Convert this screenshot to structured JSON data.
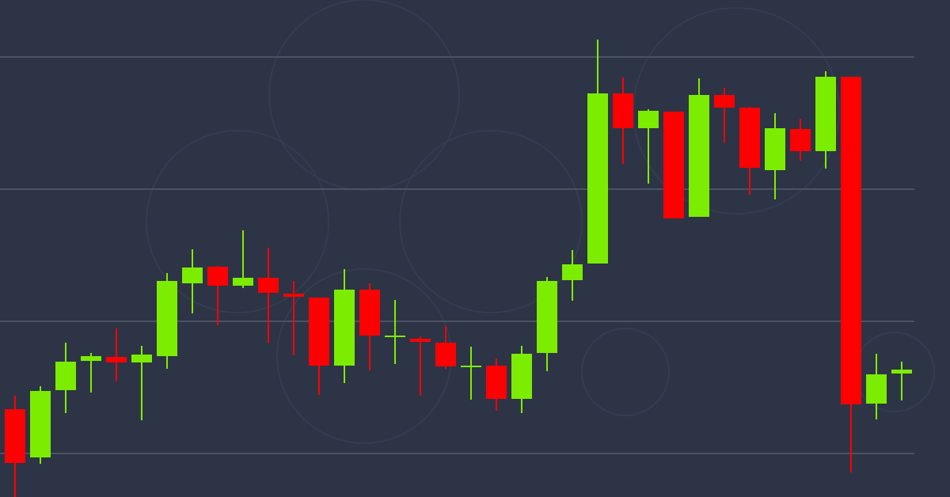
{
  "chart_data": {
    "type": "candlestick",
    "ylim": [
      0,
      628
    ],
    "yticks": [
      55,
      222,
      389,
      556
    ],
    "grid": true,
    "up_color": "#7ced00",
    "down_color": "#ff0000",
    "open": [
      111,
      50,
      135,
      172,
      177,
      170,
      178,
      270,
      291,
      267,
      277,
      257,
      252,
      166,
      262,
      203,
      200,
      195,
      164,
      166,
      124,
      182,
      274,
      295,
      510,
      466,
      487,
      354,
      508,
      492,
      413,
      465,
      437,
      531,
      118,
      156
    ],
    "high": [
      128,
      140,
      195,
      182,
      213,
      191,
      283,
      313,
      292,
      337,
      315,
      273,
      252,
      288,
      270,
      249,
      203,
      216,
      190,
      175,
      191,
      278,
      312,
      578,
      530,
      490,
      487,
      529,
      517,
      493,
      485,
      478,
      538,
      531,
      181,
      171
    ],
    "low": [
      0,
      42,
      106,
      132,
      146,
      97,
      162,
      232,
      217,
      264,
      195,
      179,
      129,
      144,
      160,
      168,
      128,
      162,
      123,
      109,
      106,
      159,
      248,
      295,
      421,
      396,
      352,
      354,
      448,
      382,
      376,
      425,
      415,
      31,
      98,
      122
    ],
    "close": [
      43,
      134,
      171,
      178,
      170,
      180,
      273,
      290,
      267,
      277,
      258,
      253,
      166,
      262,
      204,
      204,
      196,
      165,
      166,
      124,
      181,
      273,
      294,
      510,
      466,
      488,
      352,
      508,
      492,
      416,
      466,
      437,
      531,
      117,
      155,
      161
    ]
  }
}
